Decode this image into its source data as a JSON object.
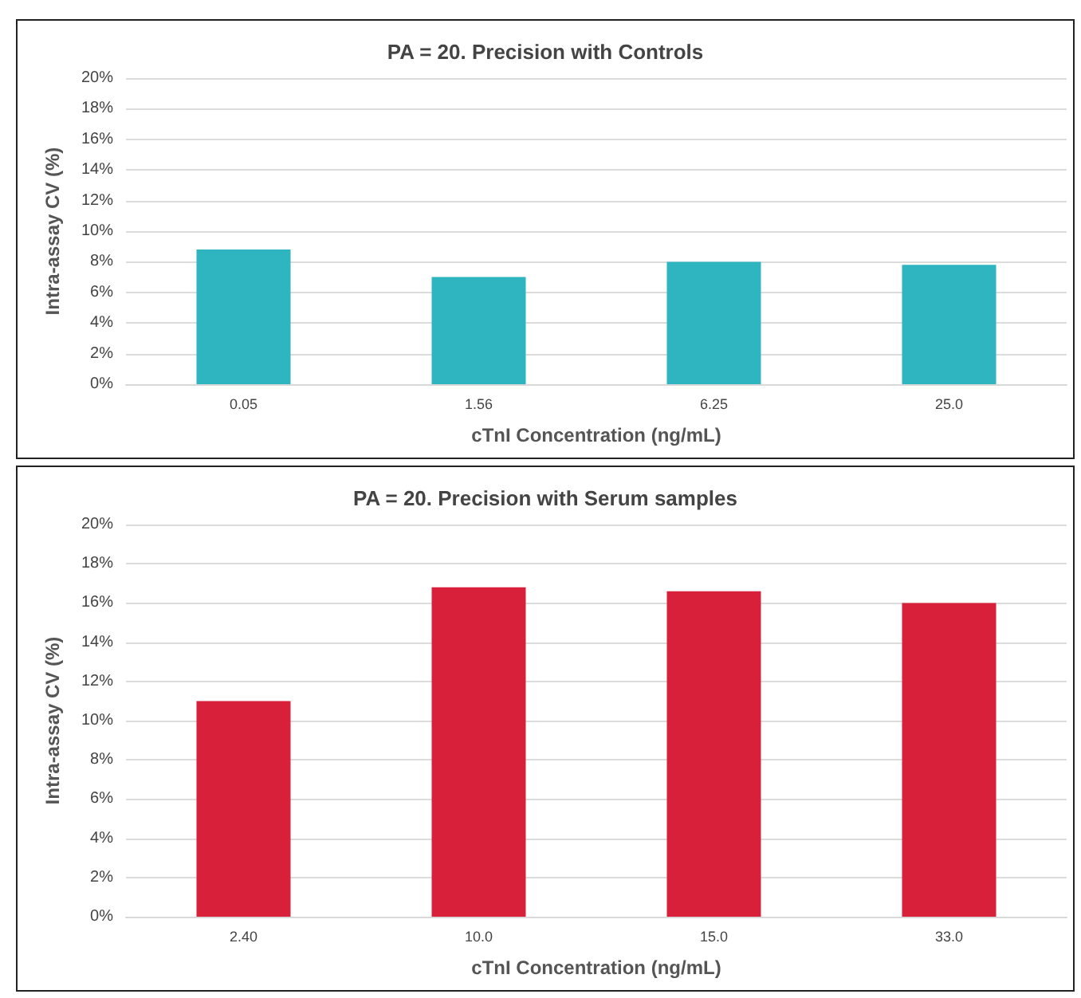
{
  "chart_data": [
    {
      "type": "bar",
      "title": "PA = 20. Precision with Controls",
      "xlabel": "cTnI Concentration (ng/mL)",
      "ylabel": "Intra-assay CV (%)",
      "categories": [
        "0.05",
        "1.56",
        "6.25",
        "25.0"
      ],
      "series": [
        {
          "color": "#2eb5bf",
          "values": [
            8.8,
            7.0,
            8.0,
            7.8
          ]
        }
      ],
      "ylim": [
        0,
        20
      ],
      "yticks": [
        {
          "value": 0,
          "label": "0%"
        },
        {
          "value": 2,
          "label": "2%"
        },
        {
          "value": 4,
          "label": "4%"
        },
        {
          "value": 6,
          "label": "6%"
        },
        {
          "value": 8,
          "label": "8%"
        },
        {
          "value": 10,
          "label": "10%"
        },
        {
          "value": 12,
          "label": "12%"
        },
        {
          "value": 14,
          "label": "14%"
        },
        {
          "value": 16,
          "label": "16%"
        },
        {
          "value": 18,
          "label": "18%"
        },
        {
          "value": 20,
          "label": "20%"
        }
      ],
      "grid": "y"
    },
    {
      "type": "bar",
      "title": "PA = 20. Precision with Serum samples",
      "xlabel": "cTnI Concentration (ng/mL)",
      "ylabel": "Intra-assay CV (%)",
      "categories": [
        "2.40",
        "10.0",
        "15.0",
        "33.0"
      ],
      "series": [
        {
          "color": "#d8203b",
          "values": [
            11.0,
            16.8,
            16.6,
            16.0
          ]
        }
      ],
      "ylim": [
        0,
        20
      ],
      "yticks": [
        {
          "value": 0,
          "label": "0%"
        },
        {
          "value": 2,
          "label": "2%"
        },
        {
          "value": 4,
          "label": "4%"
        },
        {
          "value": 6,
          "label": "6%"
        },
        {
          "value": 8,
          "label": "8%"
        },
        {
          "value": 10,
          "label": "10%"
        },
        {
          "value": 12,
          "label": "12%"
        },
        {
          "value": 14,
          "label": "14%"
        },
        {
          "value": 16,
          "label": "16%"
        },
        {
          "value": 18,
          "label": "18%"
        },
        {
          "value": 20,
          "label": "20%"
        }
      ],
      "grid": "y"
    }
  ]
}
